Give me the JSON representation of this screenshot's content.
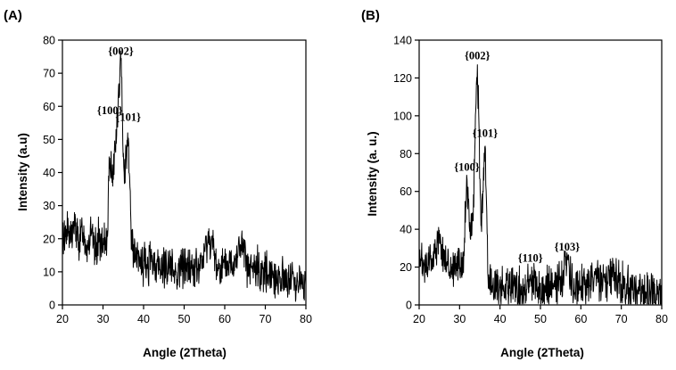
{
  "chart_data": [
    {
      "type": "line",
      "panel_label": "(A)",
      "xlabel": "Angle (2Theta)",
      "ylabel": "Intensity (a.u)",
      "xlim": [
        20,
        80
      ],
      "ylim": [
        0,
        80
      ],
      "xticks": [
        "20",
        "30",
        "40",
        "50",
        "60",
        "70",
        "80"
      ],
      "yticks": [
        "0",
        "10",
        "20",
        "30",
        "40",
        "50",
        "60",
        "70",
        "80"
      ],
      "grid": false,
      "annotations": [
        {
          "text": "{100}",
          "x": 31.7,
          "y": 56
        },
        {
          "text": "{002}",
          "x": 34.4,
          "y": 74
        },
        {
          "text": "{101}",
          "x": 36.2,
          "y": 54
        }
      ],
      "series": [
        {
          "x": [
            20,
            21,
            22,
            23,
            24,
            25,
            26,
            27,
            28,
            29,
            30,
            31,
            31.7,
            32.5,
            33.5,
            34.4,
            35.2,
            36.2,
            37,
            38,
            40,
            42,
            44,
            46,
            48,
            50,
            52,
            54,
            56.2,
            58,
            60,
            62,
            64,
            66,
            68,
            70,
            72,
            74,
            76,
            78,
            80
          ],
          "y": [
            20,
            23,
            20,
            24,
            19,
            22,
            18,
            21,
            17,
            20,
            16,
            21,
            45,
            40,
            55,
            74,
            40,
            52,
            20,
            14,
            12,
            13,
            11,
            12,
            10,
            12,
            11,
            11,
            21,
            12,
            11,
            13,
            18,
            10,
            11,
            10,
            9,
            8,
            8,
            7,
            6
          ]
        }
      ]
    },
    {
      "type": "line",
      "panel_label": "(B)",
      "xlabel": "Angle (2Theta)",
      "ylabel": "Intensity (a. u.)",
      "xlim": [
        20,
        80
      ],
      "ylim": [
        0,
        140
      ],
      "xticks": [
        "20",
        "30",
        "40",
        "50",
        "60",
        "70",
        "80"
      ],
      "yticks": [
        "0",
        "20",
        "40",
        "60",
        "80",
        "100",
        "120",
        "140"
      ],
      "grid": false,
      "annotations": [
        {
          "text": "{100}",
          "x": 31.8,
          "y": 68
        },
        {
          "text": "{002}",
          "x": 34.4,
          "y": 127
        },
        {
          "text": "{101}",
          "x": 36.3,
          "y": 86
        },
        {
          "text": "{110}",
          "x": 47.5,
          "y": 20
        },
        {
          "text": "{103}",
          "x": 56.6,
          "y": 26
        }
      ],
      "series": [
        {
          "x": [
            20,
            21,
            22,
            23,
            24,
            25,
            26,
            27,
            28,
            29,
            30,
            31,
            31.8,
            32.5,
            33.3,
            34.4,
            35.3,
            36.3,
            37,
            38,
            40,
            42,
            44,
            46,
            47.5,
            49,
            52,
            54,
            55.5,
            56.6,
            57.5,
            60,
            62,
            64,
            66,
            68,
            70,
            72,
            74,
            76,
            78,
            80
          ],
          "y": [
            18,
            22,
            20,
            24,
            30,
            33,
            26,
            22,
            20,
            22,
            21,
            25,
            68,
            38,
            45,
            127,
            40,
            86,
            15,
            10,
            9,
            10,
            8,
            9,
            14,
            9,
            8,
            9,
            12,
            26,
            12,
            10,
            11,
            14,
            12,
            18,
            11,
            9,
            8,
            7,
            6,
            5
          ]
        }
      ]
    }
  ]
}
